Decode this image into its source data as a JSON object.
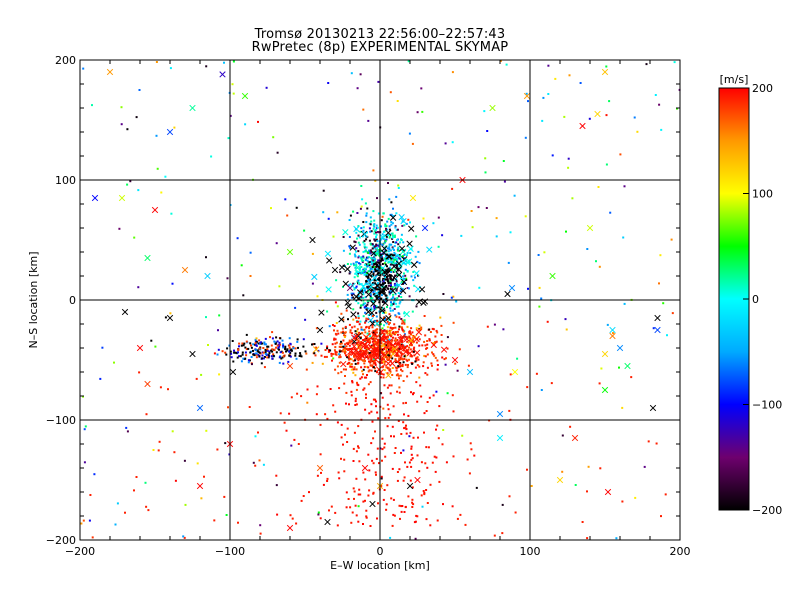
{
  "chart_data": {
    "type": "scatter",
    "title": "Tromsø 20130213 22:56:00–22:57:43",
    "subtitle": "RwPretec (8p) EXPERIMENTAL SKYMAP",
    "xlabel": "E–W location [km]",
    "ylabel": "N–S location [km]",
    "xlim": [
      -200,
      200
    ],
    "ylim": [
      -200,
      200
    ],
    "xticks": [
      -200,
      -100,
      0,
      100,
      200
    ],
    "yticks": [
      -200,
      -100,
      0,
      100,
      200
    ],
    "grid": true,
    "colorbar": {
      "label": "[m/s]",
      "min": -200,
      "max": 200,
      "ticks": [
        200,
        100,
        0,
        -100,
        -200
      ],
      "colormap": [
        "#000000",
        "#6e006e",
        "#0000ff",
        "#00aaff",
        "#00ffff",
        "#00ff00",
        "#ffff00",
        "#ff9900",
        "#ff0000"
      ]
    },
    "markers": {
      "small": "dot (dense clusters)",
      "large": "x"
    },
    "clusters": [
      {
        "center": [
          0,
          25
        ],
        "spread": [
          10,
          22
        ],
        "velocity_range": [
          -200,
          60
        ],
        "description": "northern cluster, mostly black/green/cyan"
      },
      {
        "center": [
          0,
          -40
        ],
        "spread": [
          18,
          12
        ],
        "velocity_range": [
          150,
          200
        ],
        "description": "southern cluster, mostly red"
      },
      {
        "center": [
          -75,
          -42
        ],
        "spread": [
          15,
          5
        ],
        "velocity_range": [
          -200,
          -40
        ],
        "description": "western arm, black/blue/cyan"
      }
    ],
    "x_markers": [
      {
        "x": -180,
        "y": 190,
        "v": 150
      },
      {
        "x": -140,
        "y": 140,
        "v": -80
      },
      {
        "x": -105,
        "y": 188,
        "v": -120
      },
      {
        "x": -90,
        "y": 170,
        "v": 60
      },
      {
        "x": -125,
        "y": 160,
        "v": 20
      },
      {
        "x": -150,
        "y": 75,
        "v": 200
      },
      {
        "x": -172,
        "y": 85,
        "v": 90
      },
      {
        "x": -190,
        "y": 85,
        "v": -100
      },
      {
        "x": -155,
        "y": 35,
        "v": 30
      },
      {
        "x": -130,
        "y": 25,
        "v": 160
      },
      {
        "x": -115,
        "y": 20,
        "v": -30
      },
      {
        "x": -60,
        "y": 40,
        "v": 70
      },
      {
        "x": -45,
        "y": 50,
        "v": -200
      },
      {
        "x": -30,
        "y": 25,
        "v": -200
      },
      {
        "x": -20,
        "y": 10,
        "v": -150
      },
      {
        "x": 22,
        "y": 85,
        "v": 110
      },
      {
        "x": 30,
        "y": 60,
        "v": -90
      },
      {
        "x": 55,
        "y": 100,
        "v": 200
      },
      {
        "x": 75,
        "y": 160,
        "v": 80
      },
      {
        "x": 98,
        "y": 170,
        "v": 150
      },
      {
        "x": 135,
        "y": 145,
        "v": 200
      },
      {
        "x": 150,
        "y": 190,
        "v": 130
      },
      {
        "x": 145,
        "y": 155,
        "v": 120
      },
      {
        "x": 115,
        "y": 20,
        "v": 60
      },
      {
        "x": 88,
        "y": 10,
        "v": -60
      },
      {
        "x": 85,
        "y": 5,
        "v": -200
      },
      {
        "x": 140,
        "y": 60,
        "v": 90
      },
      {
        "x": -170,
        "y": -10,
        "v": -200
      },
      {
        "x": -160,
        "y": -40,
        "v": 200
      },
      {
        "x": -155,
        "y": -70,
        "v": 180
      },
      {
        "x": -140,
        "y": -15,
        "v": -200
      },
      {
        "x": -125,
        "y": -45,
        "v": -200
      },
      {
        "x": -120,
        "y": -90,
        "v": -70
      },
      {
        "x": -98,
        "y": -60,
        "v": -200
      },
      {
        "x": -60,
        "y": -55,
        "v": 180
      },
      {
        "x": -40,
        "y": -25,
        "v": -200
      },
      {
        "x": 50,
        "y": -50,
        "v": 200
      },
      {
        "x": 60,
        "y": -60,
        "v": -40
      },
      {
        "x": 80,
        "y": -95,
        "v": -60
      },
      {
        "x": 90,
        "y": -60,
        "v": 100
      },
      {
        "x": 160,
        "y": -40,
        "v": -60
      },
      {
        "x": 150,
        "y": -45,
        "v": 120
      },
      {
        "x": 165,
        "y": -55,
        "v": 30
      },
      {
        "x": 150,
        "y": -75,
        "v": 50
      },
      {
        "x": 182,
        "y": -90,
        "v": -200
      },
      {
        "x": 185,
        "y": -15,
        "v": -200
      },
      {
        "x": 185,
        "y": -25,
        "v": -80
      },
      {
        "x": 155,
        "y": -25,
        "v": -20
      },
      {
        "x": 155,
        "y": -30,
        "v": 160
      },
      {
        "x": 130,
        "y": -115,
        "v": 190
      },
      {
        "x": 120,
        "y": -150,
        "v": 120
      },
      {
        "x": 152,
        "y": -160,
        "v": 200
      },
      {
        "x": 80,
        "y": -115,
        "v": -10
      },
      {
        "x": -40,
        "y": -140,
        "v": 170
      },
      {
        "x": -60,
        "y": -190,
        "v": 200
      },
      {
        "x": -35,
        "y": -185,
        "v": -200
      },
      {
        "x": -10,
        "y": -140,
        "v": 200
      },
      {
        "x": -5,
        "y": -170,
        "v": -200
      },
      {
        "x": 20,
        "y": -155,
        "v": -200
      },
      {
        "x": 25,
        "y": -150,
        "v": 200
      },
      {
        "x": -100,
        "y": -120,
        "v": 200
      },
      {
        "x": -120,
        "y": -155,
        "v": 200
      },
      {
        "x": 0,
        "y": -155,
        "v": 140
      }
    ],
    "n_scatter_points_estimate": 2500
  }
}
